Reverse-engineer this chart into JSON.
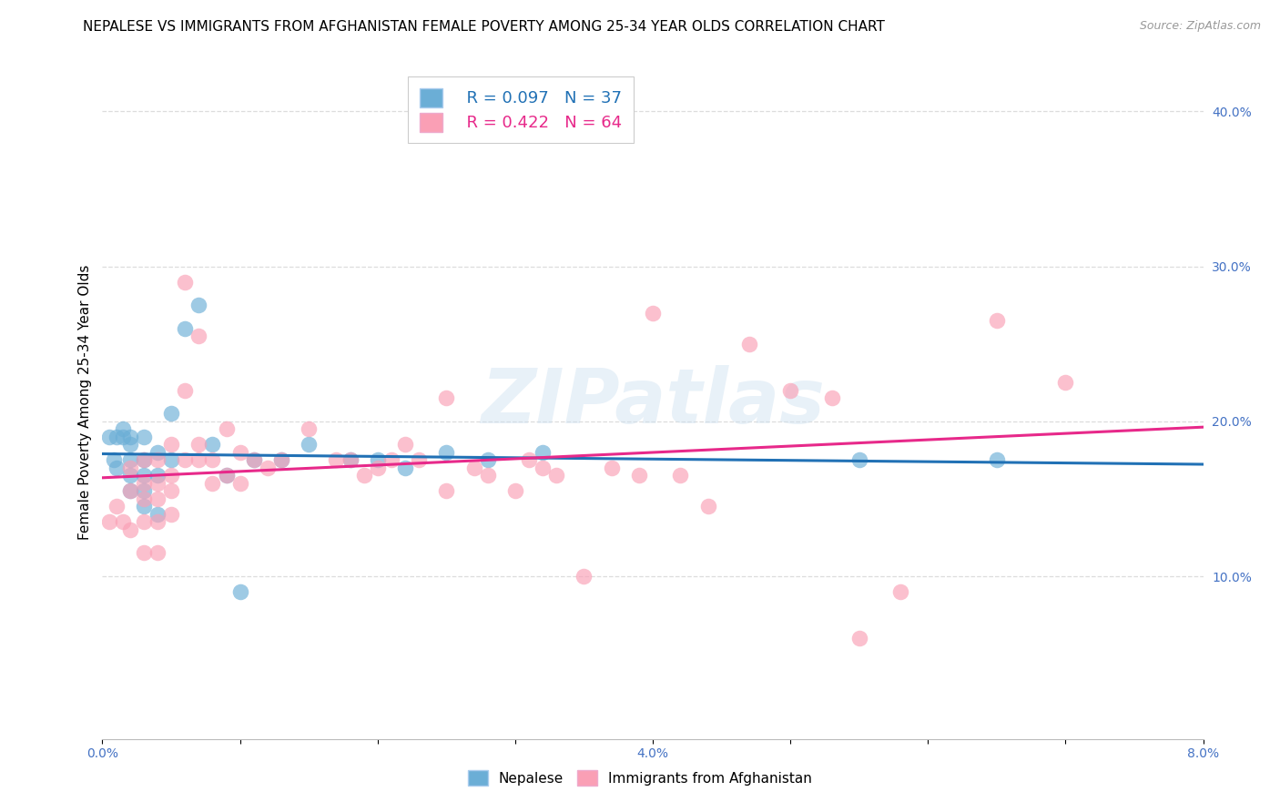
{
  "title": "NEPALESE VS IMMIGRANTS FROM AFGHANISTAN FEMALE POVERTY AMONG 25-34 YEAR OLDS CORRELATION CHART",
  "source": "Source: ZipAtlas.com",
  "ylabel": "Female Poverty Among 25-34 Year Olds",
  "xlim": [
    0.0,
    0.08
  ],
  "ylim": [
    -0.005,
    0.43
  ],
  "yticks_right": [
    0.1,
    0.2,
    0.3,
    0.4
  ],
  "yticklabels_right": [
    "10.0%",
    "20.0%",
    "30.0%",
    "40.0%"
  ],
  "legend_r1": "R = 0.097",
  "legend_n1": "N = 37",
  "legend_r2": "R = 0.422",
  "legend_n2": "N = 64",
  "color_nepalese": "#6baed6",
  "color_afghanistan": "#fa9fb5",
  "color_line_nepalese": "#2171b5",
  "color_line_afghanistan": "#e7298a",
  "watermark": "ZIPatlas",
  "nepalese_x": [
    0.0005,
    0.0008,
    0.001,
    0.001,
    0.0015,
    0.0015,
    0.002,
    0.002,
    0.002,
    0.002,
    0.002,
    0.003,
    0.003,
    0.003,
    0.003,
    0.003,
    0.004,
    0.004,
    0.004,
    0.005,
    0.005,
    0.006,
    0.007,
    0.008,
    0.009,
    0.01,
    0.011,
    0.013,
    0.015,
    0.018,
    0.02,
    0.022,
    0.025,
    0.028,
    0.032,
    0.055,
    0.065
  ],
  "nepalese_y": [
    0.19,
    0.175,
    0.17,
    0.19,
    0.195,
    0.19,
    0.19,
    0.185,
    0.175,
    0.165,
    0.155,
    0.19,
    0.175,
    0.165,
    0.155,
    0.145,
    0.18,
    0.165,
    0.14,
    0.205,
    0.175,
    0.26,
    0.275,
    0.185,
    0.165,
    0.09,
    0.175,
    0.175,
    0.185,
    0.175,
    0.175,
    0.17,
    0.18,
    0.175,
    0.18,
    0.175,
    0.175
  ],
  "afghanistan_x": [
    0.0005,
    0.001,
    0.0015,
    0.002,
    0.002,
    0.002,
    0.003,
    0.003,
    0.003,
    0.003,
    0.003,
    0.004,
    0.004,
    0.004,
    0.004,
    0.004,
    0.005,
    0.005,
    0.005,
    0.005,
    0.006,
    0.006,
    0.006,
    0.007,
    0.007,
    0.007,
    0.008,
    0.008,
    0.009,
    0.009,
    0.01,
    0.01,
    0.011,
    0.012,
    0.013,
    0.015,
    0.017,
    0.018,
    0.019,
    0.02,
    0.021,
    0.022,
    0.023,
    0.025,
    0.025,
    0.027,
    0.028,
    0.03,
    0.031,
    0.032,
    0.033,
    0.035,
    0.037,
    0.039,
    0.04,
    0.042,
    0.044,
    0.047,
    0.05,
    0.053,
    0.055,
    0.058,
    0.065,
    0.07
  ],
  "afghanistan_y": [
    0.135,
    0.145,
    0.135,
    0.17,
    0.155,
    0.13,
    0.175,
    0.16,
    0.15,
    0.135,
    0.115,
    0.175,
    0.16,
    0.15,
    0.135,
    0.115,
    0.185,
    0.165,
    0.155,
    0.14,
    0.29,
    0.22,
    0.175,
    0.255,
    0.185,
    0.175,
    0.175,
    0.16,
    0.195,
    0.165,
    0.18,
    0.16,
    0.175,
    0.17,
    0.175,
    0.195,
    0.175,
    0.175,
    0.165,
    0.17,
    0.175,
    0.185,
    0.175,
    0.215,
    0.155,
    0.17,
    0.165,
    0.155,
    0.175,
    0.17,
    0.165,
    0.1,
    0.17,
    0.165,
    0.27,
    0.165,
    0.145,
    0.25,
    0.22,
    0.215,
    0.06,
    0.09,
    0.265,
    0.225
  ],
  "background_color": "#ffffff",
  "grid_color": "#dddddd",
  "title_fontsize": 11,
  "axis_label_fontsize": 11,
  "tick_fontsize": 10,
  "source_fontsize": 9,
  "tick_color": "#4472c4"
}
